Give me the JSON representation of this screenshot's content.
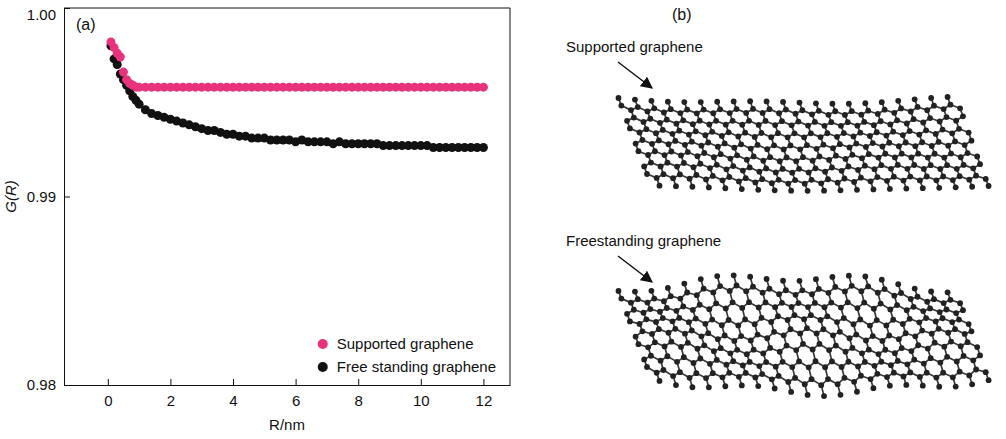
{
  "chart_data": {
    "type": "scatter",
    "panel_label": "(a)",
    "x_label": "R/nm",
    "y_label": "G(R)",
    "xlim": [
      -1.4,
      12.85
    ],
    "ylim": [
      0.98,
      1.0
    ],
    "xticks": [
      0,
      2,
      4,
      6,
      8,
      10,
      12
    ],
    "yticks": [
      0.98,
      0.99,
      {
        "value": 1.0,
        "label": "1.00"
      }
    ],
    "legend": "lower right",
    "marker": "circle",
    "x": [
      0.1,
      0.2,
      0.3,
      0.4,
      0.5,
      0.6,
      0.7,
      0.8,
      0.9,
      1.0,
      1.2,
      1.4,
      1.6,
      1.8,
      2.0,
      2.2,
      2.4,
      2.6,
      2.8,
      3.0,
      3.2,
      3.4,
      3.6,
      3.8,
      4.0,
      4.2,
      4.4,
      4.6,
      4.8,
      5.0,
      5.2,
      5.4,
      5.6,
      5.8,
      6.0,
      6.2,
      6.4,
      6.6,
      6.8,
      7.0,
      7.2,
      7.4,
      7.6,
      7.8,
      8.0,
      8.2,
      8.4,
      8.6,
      8.8,
      9.0,
      9.2,
      9.4,
      9.6,
      9.8,
      10.0,
      10.2,
      10.4,
      10.6,
      10.8,
      11.0,
      11.2,
      11.4,
      11.6,
      11.8,
      12.0
    ],
    "series": [
      {
        "name": "Supported graphene",
        "color": "#e8337c",
        "values": [
          0.9982,
          0.9979,
          0.9976,
          0.9974,
          0.9966,
          0.9962,
          0.996,
          0.9959,
          0.9958,
          0.9958,
          0.9958,
          0.9958,
          0.9958,
          0.9958,
          0.9958,
          0.9958,
          0.9958,
          0.9958,
          0.9958,
          0.9958,
          0.9958,
          0.9958,
          0.9958,
          0.9958,
          0.9958,
          0.9958,
          0.9958,
          0.9958,
          0.9958,
          0.9958,
          0.9958,
          0.9958,
          0.9958,
          0.9958,
          0.9958,
          0.9958,
          0.9958,
          0.9958,
          0.9958,
          0.9958,
          0.9958,
          0.9958,
          0.9958,
          0.9958,
          0.9958,
          0.9958,
          0.9958,
          0.9958,
          0.9958,
          0.9958,
          0.9958,
          0.9958,
          0.9958,
          0.9958,
          0.9958,
          0.9958,
          0.9958,
          0.9958,
          0.9958,
          0.9958,
          0.9958,
          0.9958,
          0.9958,
          0.9958,
          0.9958
        ]
      },
      {
        "name": "Free standing graphene",
        "color": "#111111",
        "values": [
          0.998,
          0.9973,
          0.997,
          0.9965,
          0.9962,
          0.9959,
          0.9956,
          0.9953,
          0.9951,
          0.9949,
          0.9946,
          0.9944,
          0.9943,
          0.9942,
          0.9941,
          0.994,
          0.9939,
          0.9938,
          0.9937,
          0.9936,
          0.9935,
          0.9935,
          0.9934,
          0.9933,
          0.9933,
          0.9932,
          0.9932,
          0.9931,
          0.9931,
          0.9931,
          0.993,
          0.993,
          0.993,
          0.993,
          0.9929,
          0.993,
          0.9929,
          0.9929,
          0.9929,
          0.9929,
          0.9928,
          0.9929,
          0.9928,
          0.9928,
          0.9928,
          0.9928,
          0.9928,
          0.9928,
          0.9927,
          0.9927,
          0.9927,
          0.9927,
          0.9927,
          0.9927,
          0.9927,
          0.9927,
          0.9926,
          0.9926,
          0.9926,
          0.9926,
          0.9926,
          0.9926,
          0.9926,
          0.9926,
          0.9926
        ]
      }
    ]
  },
  "figure_b": {
    "panel_label": "(b)",
    "labels": [
      "Supported graphene",
      "Freestanding graphene"
    ]
  }
}
